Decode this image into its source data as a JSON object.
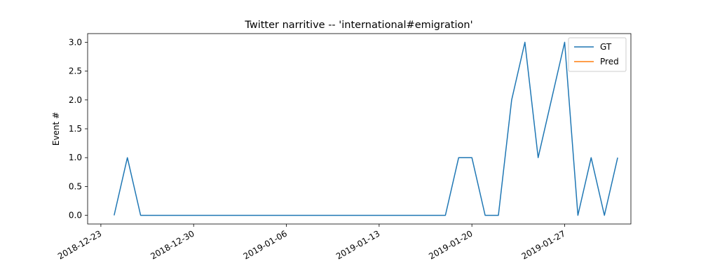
{
  "chart_data": {
    "type": "line",
    "title": "Twitter narritive -- 'international#emigration'",
    "xlabel": "",
    "ylabel": "Event #",
    "x_axis_type": "date",
    "xlim": [
      "2018-12-22",
      "2019-02-01"
    ],
    "ylim": [
      -0.15,
      3.15
    ],
    "x_ticks": [
      "2018-12-23",
      "2018-12-30",
      "2019-01-06",
      "2019-01-13",
      "2019-01-20",
      "2019-01-27"
    ],
    "y_ticks": [
      "0.0",
      "0.5",
      "1.0",
      "1.5",
      "2.0",
      "2.5",
      "3.0"
    ],
    "y_tick_values": [
      0,
      0.5,
      1,
      1.5,
      2,
      2.5,
      3
    ],
    "grid": false,
    "legend_position": "top-right",
    "series": [
      {
        "name": "GT",
        "color": "#1f77b4",
        "x": [
          "2018-12-24",
          "2018-12-25",
          "2018-12-26",
          "2018-12-27",
          "2018-12-28",
          "2018-12-29",
          "2018-12-30",
          "2018-12-31",
          "2019-01-01",
          "2019-01-02",
          "2019-01-03",
          "2019-01-04",
          "2019-01-05",
          "2019-01-06",
          "2019-01-07",
          "2019-01-08",
          "2019-01-09",
          "2019-01-10",
          "2019-01-11",
          "2019-01-12",
          "2019-01-13",
          "2019-01-14",
          "2019-01-15",
          "2019-01-16",
          "2019-01-17",
          "2019-01-18",
          "2019-01-19",
          "2019-01-20",
          "2019-01-21",
          "2019-01-22",
          "2019-01-23",
          "2019-01-24",
          "2019-01-25",
          "2019-01-26",
          "2019-01-27",
          "2019-01-28",
          "2019-01-29",
          "2019-01-30",
          "2019-01-31"
        ],
        "values": [
          0,
          1,
          0,
          0,
          0,
          0,
          0,
          0,
          0,
          0,
          0,
          0,
          0,
          0,
          0,
          0,
          0,
          0,
          0,
          0,
          0,
          0,
          0,
          0,
          0,
          0,
          1,
          1,
          0,
          0,
          2,
          3,
          1,
          2,
          3,
          0,
          1,
          0,
          1
        ]
      },
      {
        "name": "Pred",
        "color": "#ff7f0e",
        "x": [],
        "values": []
      }
    ]
  }
}
